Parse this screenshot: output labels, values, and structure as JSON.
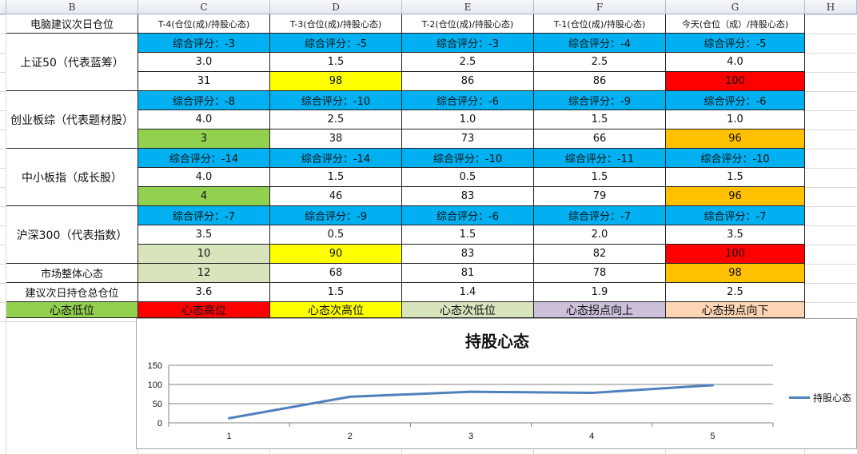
{
  "columns": [
    "B",
    "C",
    "D",
    "E",
    "F",
    "G",
    "H"
  ],
  "header": {
    "label": "电脑建议次日仓位",
    "days": [
      "T-4(仓位(成)/持股心态)",
      "T-3(仓位(成)/持股心态)",
      "T-2(仓位(成)/持股心态)",
      "T-1(仓位(成)/持股心态)",
      "今天(仓位（成）/持股心态)"
    ]
  },
  "groups": [
    {
      "name": "上证50（代表蓝筹）",
      "scores": [
        "综合评分：-3",
        "综合评分：-5",
        "综合评分：-3",
        "综合评分：-4",
        "综合评分：-5"
      ],
      "positions": [
        "3.0",
        "1.5",
        "2.5",
        "2.5",
        "4.0"
      ],
      "moods": [
        "31",
        "98",
        "86",
        "86",
        "100"
      ],
      "mood_colors": [
        "#ffffff",
        "#ffff00",
        "#ffffff",
        "#ffffff",
        "#ff0000"
      ]
    },
    {
      "name": "创业板综（代表题材股）",
      "scores": [
        "综合评分：-8",
        "综合评分：-10",
        "综合评分：-6",
        "综合评分：-9",
        "综合评分：-6"
      ],
      "positions": [
        "4.0",
        "2.5",
        "1.0",
        "1.5",
        "1.0"
      ],
      "moods": [
        "3",
        "38",
        "73",
        "66",
        "96"
      ],
      "mood_colors": [
        "#92d050",
        "#ffffff",
        "#ffffff",
        "#ffffff",
        "#ffc000"
      ]
    },
    {
      "name": "中小板指（成长股）",
      "scores": [
        "综合评分：-14",
        "综合评分：-14",
        "综合评分：-10",
        "综合评分：-11",
        "综合评分：-10"
      ],
      "positions": [
        "4.0",
        "1.5",
        "0.5",
        "1.5",
        "1.5"
      ],
      "moods": [
        "4",
        "46",
        "83",
        "79",
        "96"
      ],
      "mood_colors": [
        "#92d050",
        "#ffffff",
        "#ffffff",
        "#ffffff",
        "#ffc000"
      ]
    },
    {
      "name": "沪深300（代表指数）",
      "scores": [
        "综合评分：-7",
        "综合评分：-9",
        "综合评分：-6",
        "综合评分：-7",
        "综合评分：-7"
      ],
      "positions": [
        "3.5",
        "0.5",
        "1.5",
        "2.0",
        "3.5"
      ],
      "moods": [
        "10",
        "90",
        "83",
        "82",
        "100"
      ],
      "mood_colors": [
        "#d8e4bc",
        "#ffff00",
        "#ffffff",
        "#ffffff",
        "#ff0000"
      ]
    }
  ],
  "market": {
    "label": "市场整体心态",
    "values": [
      "12",
      "68",
      "81",
      "78",
      "98"
    ],
    "colors": [
      "#d8e4bc",
      "#ffffff",
      "#ffffff",
      "#ffffff",
      "#ffc000"
    ]
  },
  "total": {
    "label": "建议次日持仓总仓位",
    "values": [
      "3.6",
      "1.5",
      "1.4",
      "1.9",
      "2.5"
    ]
  },
  "legend_row": [
    {
      "label": "心态低位",
      "color": "#92d050"
    },
    {
      "label": "心态高位",
      "color": "#ff0000"
    },
    {
      "label": "心态次高位",
      "color": "#ffff00"
    },
    {
      "label": "心态次低位",
      "color": "#d8e4bc"
    },
    {
      "label": "心态拐点向上",
      "color": "#ccc0da"
    },
    {
      "label": "心态拐点向下",
      "color": "#fcd5b4"
    }
  ],
  "score_color": "#00b0f0",
  "chart_data": {
    "type": "line",
    "title": "持股心态",
    "x": [
      "1",
      "2",
      "3",
      "4",
      "5"
    ],
    "series": [
      {
        "name": "持股心态",
        "values": [
          12,
          68,
          81,
          78,
          98
        ],
        "color": "#4f81bd"
      }
    ],
    "ylim": [
      0,
      150
    ],
    "yticks": [
      "0",
      "50",
      "100",
      "150"
    ],
    "grid": true,
    "legend": "right"
  }
}
